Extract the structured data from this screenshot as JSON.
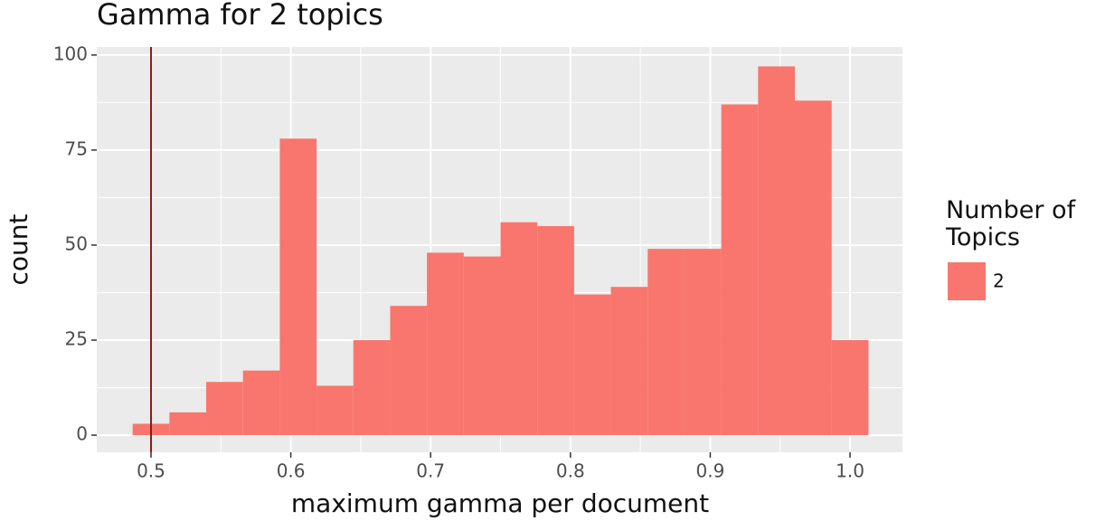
{
  "chart_data": {
    "type": "histogram",
    "title": "Gamma for 2 topics",
    "x_label": "maximum gamma per document",
    "y_label": "count",
    "bins": [
      0.48684,
      0.51316,
      0.53947,
      0.56579,
      0.59211,
      0.61842,
      0.64474,
      0.67105,
      0.69737,
      0.72368,
      0.75,
      0.77632,
      0.80263,
      0.82895,
      0.85526,
      0.88158,
      0.90789,
      0.93421,
      0.96053,
      0.98684,
      1.01316
    ],
    "series": [
      {
        "name": "2",
        "color": "#f8766d",
        "values": [
          3,
          6,
          14,
          17,
          78,
          13,
          25,
          34,
          48,
          47,
          56,
          55,
          37,
          39,
          49,
          49,
          87,
          97,
          88,
          25
        ]
      }
    ],
    "legend_title": "Number of Topics",
    "vline": {
      "value": 0.5,
      "color": "#8b1a1a"
    },
    "xlim": [
      0.4612,
      1.0375
    ],
    "ylim": [
      -4.5,
      102.1
    ],
    "xticks": [
      0.5,
      0.6,
      0.7,
      0.8,
      0.9,
      {
        "value": 1,
        "label": "1.0"
      }
    ],
    "yticks": [
      0,
      25,
      50,
      75,
      100
    ],
    "xminor": [
      0.55,
      0.65,
      0.75,
      0.85,
      0.95
    ],
    "yminor": [
      12.5,
      37.5,
      62.5,
      87.5
    ],
    "grid": true
  }
}
